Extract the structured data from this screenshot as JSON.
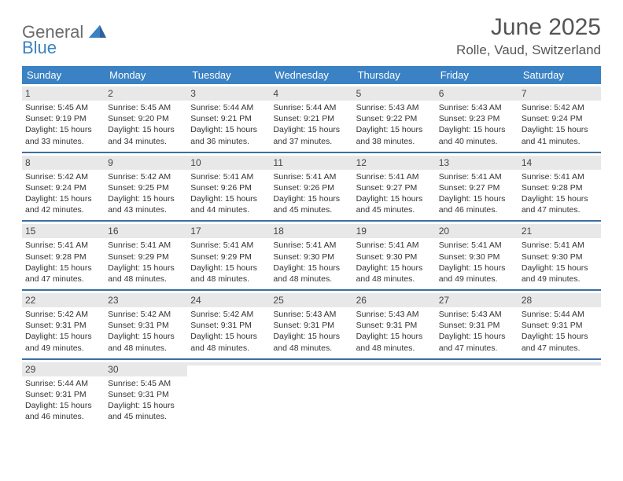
{
  "logo": {
    "word1": "General",
    "word2": "Blue"
  },
  "title": "June 2025",
  "location": "Rolle, Vaud, Switzerland",
  "colors": {
    "header_bg": "#3b82c4",
    "daynum_bg": "#e8e8e8",
    "week_divider": "#3b6fa0",
    "text": "#333333",
    "title_text": "#555555"
  },
  "days_of_week": [
    "Sunday",
    "Monday",
    "Tuesday",
    "Wednesday",
    "Thursday",
    "Friday",
    "Saturday"
  ],
  "weeks": [
    [
      {
        "n": "1",
        "sr": "5:45 AM",
        "ss": "9:19 PM",
        "dl": "15 hours and 33 minutes."
      },
      {
        "n": "2",
        "sr": "5:45 AM",
        "ss": "9:20 PM",
        "dl": "15 hours and 34 minutes."
      },
      {
        "n": "3",
        "sr": "5:44 AM",
        "ss": "9:21 PM",
        "dl": "15 hours and 36 minutes."
      },
      {
        "n": "4",
        "sr": "5:44 AM",
        "ss": "9:21 PM",
        "dl": "15 hours and 37 minutes."
      },
      {
        "n": "5",
        "sr": "5:43 AM",
        "ss": "9:22 PM",
        "dl": "15 hours and 38 minutes."
      },
      {
        "n": "6",
        "sr": "5:43 AM",
        "ss": "9:23 PM",
        "dl": "15 hours and 40 minutes."
      },
      {
        "n": "7",
        "sr": "5:42 AM",
        "ss": "9:24 PM",
        "dl": "15 hours and 41 minutes."
      }
    ],
    [
      {
        "n": "8",
        "sr": "5:42 AM",
        "ss": "9:24 PM",
        "dl": "15 hours and 42 minutes."
      },
      {
        "n": "9",
        "sr": "5:42 AM",
        "ss": "9:25 PM",
        "dl": "15 hours and 43 minutes."
      },
      {
        "n": "10",
        "sr": "5:41 AM",
        "ss": "9:26 PM",
        "dl": "15 hours and 44 minutes."
      },
      {
        "n": "11",
        "sr": "5:41 AM",
        "ss": "9:26 PM",
        "dl": "15 hours and 45 minutes."
      },
      {
        "n": "12",
        "sr": "5:41 AM",
        "ss": "9:27 PM",
        "dl": "15 hours and 45 minutes."
      },
      {
        "n": "13",
        "sr": "5:41 AM",
        "ss": "9:27 PM",
        "dl": "15 hours and 46 minutes."
      },
      {
        "n": "14",
        "sr": "5:41 AM",
        "ss": "9:28 PM",
        "dl": "15 hours and 47 minutes."
      }
    ],
    [
      {
        "n": "15",
        "sr": "5:41 AM",
        "ss": "9:28 PM",
        "dl": "15 hours and 47 minutes."
      },
      {
        "n": "16",
        "sr": "5:41 AM",
        "ss": "9:29 PM",
        "dl": "15 hours and 48 minutes."
      },
      {
        "n": "17",
        "sr": "5:41 AM",
        "ss": "9:29 PM",
        "dl": "15 hours and 48 minutes."
      },
      {
        "n": "18",
        "sr": "5:41 AM",
        "ss": "9:30 PM",
        "dl": "15 hours and 48 minutes."
      },
      {
        "n": "19",
        "sr": "5:41 AM",
        "ss": "9:30 PM",
        "dl": "15 hours and 48 minutes."
      },
      {
        "n": "20",
        "sr": "5:41 AM",
        "ss": "9:30 PM",
        "dl": "15 hours and 49 minutes."
      },
      {
        "n": "21",
        "sr": "5:41 AM",
        "ss": "9:30 PM",
        "dl": "15 hours and 49 minutes."
      }
    ],
    [
      {
        "n": "22",
        "sr": "5:42 AM",
        "ss": "9:31 PM",
        "dl": "15 hours and 49 minutes."
      },
      {
        "n": "23",
        "sr": "5:42 AM",
        "ss": "9:31 PM",
        "dl": "15 hours and 48 minutes."
      },
      {
        "n": "24",
        "sr": "5:42 AM",
        "ss": "9:31 PM",
        "dl": "15 hours and 48 minutes."
      },
      {
        "n": "25",
        "sr": "5:43 AM",
        "ss": "9:31 PM",
        "dl": "15 hours and 48 minutes."
      },
      {
        "n": "26",
        "sr": "5:43 AM",
        "ss": "9:31 PM",
        "dl": "15 hours and 48 minutes."
      },
      {
        "n": "27",
        "sr": "5:43 AM",
        "ss": "9:31 PM",
        "dl": "15 hours and 47 minutes."
      },
      {
        "n": "28",
        "sr": "5:44 AM",
        "ss": "9:31 PM",
        "dl": "15 hours and 47 minutes."
      }
    ],
    [
      {
        "n": "29",
        "sr": "5:44 AM",
        "ss": "9:31 PM",
        "dl": "15 hours and 46 minutes."
      },
      {
        "n": "30",
        "sr": "5:45 AM",
        "ss": "9:31 PM",
        "dl": "15 hours and 45 minutes."
      },
      {
        "n": "",
        "sr": "",
        "ss": "",
        "dl": ""
      },
      {
        "n": "",
        "sr": "",
        "ss": "",
        "dl": ""
      },
      {
        "n": "",
        "sr": "",
        "ss": "",
        "dl": ""
      },
      {
        "n": "",
        "sr": "",
        "ss": "",
        "dl": ""
      },
      {
        "n": "",
        "sr": "",
        "ss": "",
        "dl": ""
      }
    ]
  ],
  "labels": {
    "sunrise": "Sunrise:",
    "sunset": "Sunset:",
    "daylight": "Daylight:"
  }
}
